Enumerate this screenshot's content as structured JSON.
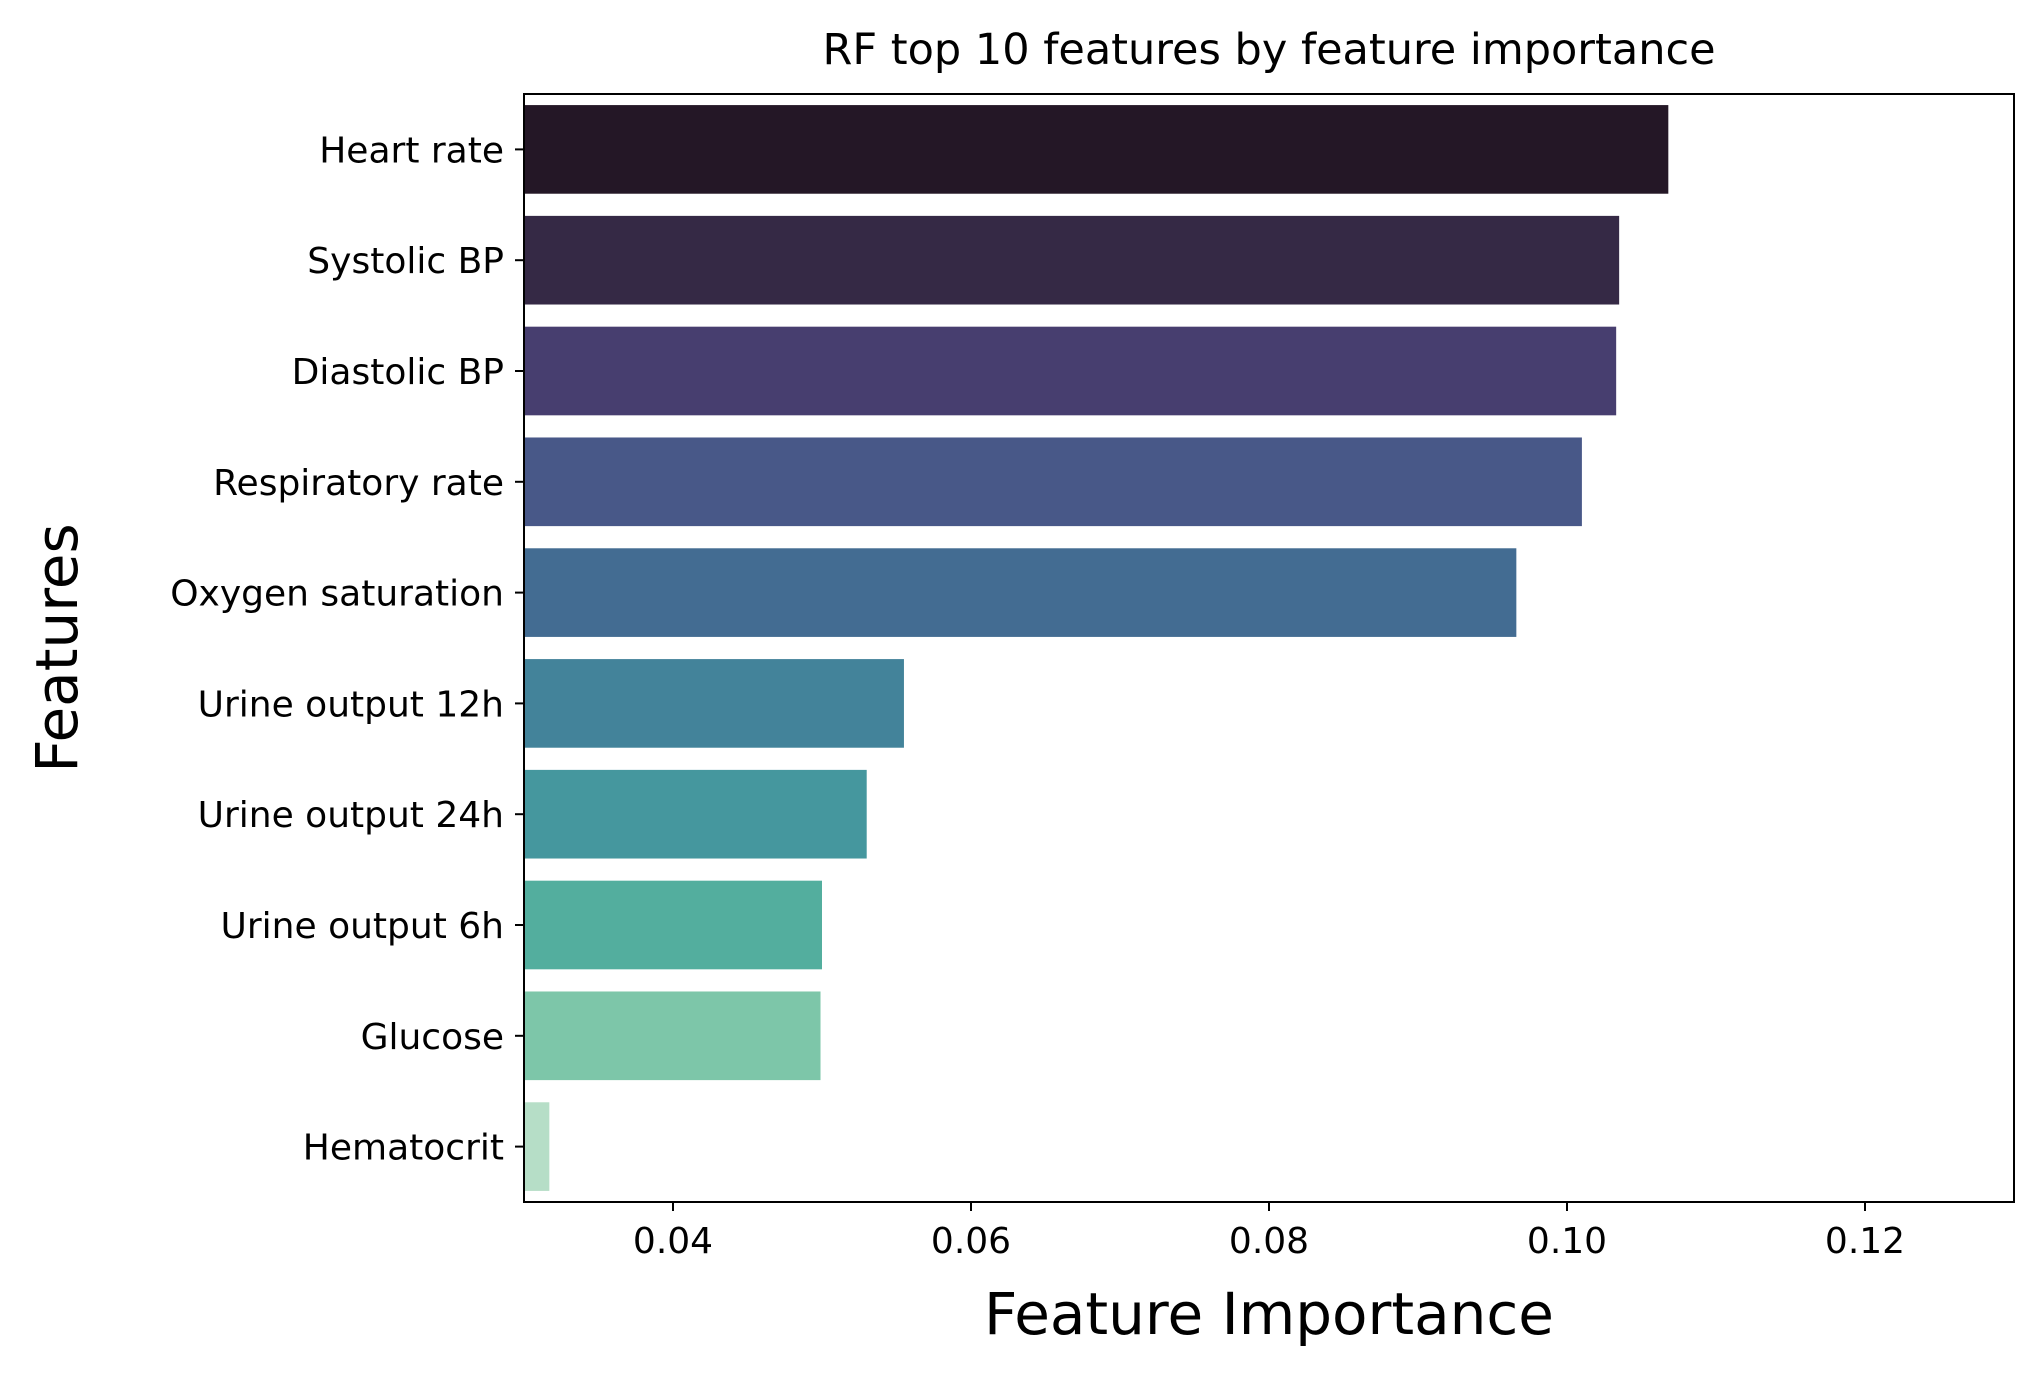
{
  "chart_data": {
    "type": "bar",
    "orientation": "horizontal",
    "title": "RF top 10 features by feature importance",
    "xlabel": "Feature Importance",
    "ylabel": "Features",
    "xlim": [
      0.03,
      0.13
    ],
    "xticks": [
      0.04,
      0.06,
      0.08,
      0.1,
      0.12
    ],
    "xtick_labels": [
      "0.04",
      "0.06",
      "0.08",
      "0.10",
      "0.12"
    ],
    "grid": false,
    "legend": "none",
    "categories": [
      "Heart rate",
      "Systolic BP",
      "Diastolic BP",
      "Respiratory rate",
      "Oxygen saturation",
      "Urine output 12h",
      "Urine output 24h",
      "Urine output 6h",
      "Glucose",
      "Hematocrit"
    ],
    "values": [
      0.1068,
      0.1035,
      0.1033,
      0.101,
      0.0966,
      0.0555,
      0.053,
      0.05,
      0.0499,
      0.0317
    ],
    "colors": [
      "#241726",
      "#352945",
      "#473e6f",
      "#485888",
      "#436c92",
      "#43839a",
      "#45979e",
      "#53ae9e",
      "#7dc6a9",
      "#b6dec7"
    ]
  }
}
